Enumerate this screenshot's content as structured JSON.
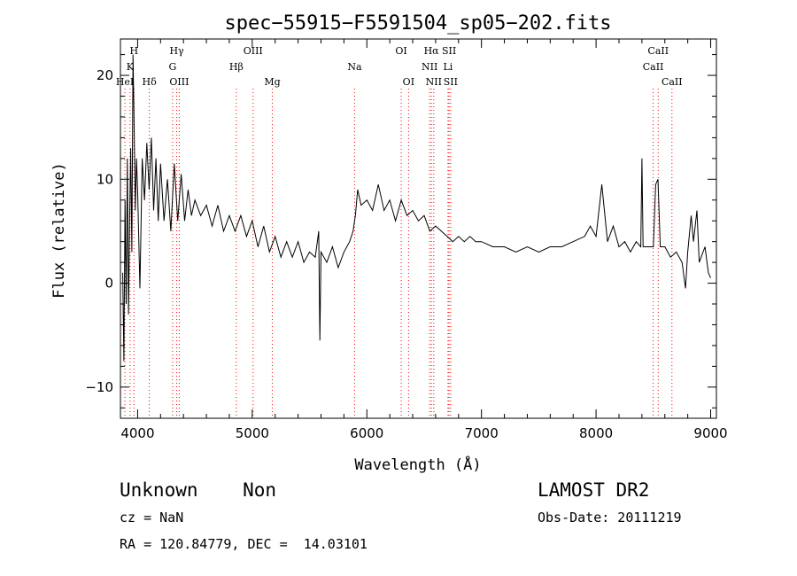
{
  "chart_data": {
    "type": "line",
    "title": "spec−55915−F5591504_sp05−202.fits",
    "xlabel": "Wavelength (Å)",
    "ylabel": "Flux (relative)",
    "xlim": [
      3850,
      9050
    ],
    "ylim": [
      -13,
      23.5
    ],
    "x_ticks": [
      4000,
      5000,
      6000,
      7000,
      8000,
      9000
    ],
    "y_ticks": [
      -10,
      0,
      10,
      20
    ],
    "grid": false,
    "line_color": "#000000",
    "marker_color": "#ff0000",
    "lines": [
      {
        "label": "H",
        "x": 3968,
        "row": 0
      },
      {
        "label": "K",
        "x": 3934,
        "row": 1
      },
      {
        "label": "HeI",
        "x": 3889,
        "row": 2
      },
      {
        "label": "Hδ",
        "x": 4102,
        "row": 2
      },
      {
        "label": "Hγ",
        "x": 4341,
        "row": 0
      },
      {
        "label": "G",
        "x": 4305,
        "row": 1
      },
      {
        "label": "OIII",
        "x": 4363,
        "row": 2
      },
      {
        "label": "OIII",
        "x": 5007,
        "row": 0
      },
      {
        "label": "Hβ",
        "x": 4861,
        "row": 1
      },
      {
        "label": "Mg",
        "x": 5175,
        "row": 2
      },
      {
        "label": "Na",
        "x": 5893,
        "row": 1
      },
      {
        "label": "OI",
        "x": 6300,
        "row": 0
      },
      {
        "label": "OI",
        "x": 6364,
        "row": 2
      },
      {
        "label": "Hα",
        "x": 6563,
        "row": 0
      },
      {
        "label": "SII",
        "x": 6717,
        "row": 0
      },
      {
        "label": "NII",
        "x": 6548,
        "row": 1
      },
      {
        "label": "Li",
        "x": 6708,
        "row": 1
      },
      {
        "label": "NII",
        "x": 6584,
        "row": 2
      },
      {
        "label": "SII",
        "x": 6731,
        "row": 2
      },
      {
        "label": "CaII",
        "x": 8542,
        "row": 0
      },
      {
        "label": "CaII",
        "x": 8498,
        "row": 1
      },
      {
        "label": "CaII",
        "x": 8662,
        "row": 2
      }
    ],
    "series": [
      {
        "x": [
          3870,
          3880,
          3890,
          3900,
          3910,
          3920,
          3930,
          3940,
          3950,
          3960,
          3970,
          3980,
          3990,
          4000,
          4020,
          4040,
          4060,
          4080,
          4100,
          4120,
          4140,
          4160,
          4180,
          4200,
          4230,
          4260,
          4290,
          4320,
          4350,
          4380,
          4410,
          4440,
          4470,
          4500,
          4550,
          4600,
          4650,
          4700,
          4750,
          4800,
          4850,
          4900,
          4950,
          5000,
          5050,
          5100,
          5150,
          5200,
          5250,
          5300,
          5350,
          5400,
          5450,
          5500,
          5550,
          5580,
          5590,
          5600,
          5650,
          5700,
          5750,
          5800,
          5850,
          5880,
          5900,
          5920,
          5950,
          6000,
          6050,
          6100,
          6150,
          6200,
          6250,
          6300,
          6350,
          6400,
          6450,
          6500,
          6550,
          6600,
          6650,
          6700,
          6750,
          6800,
          6850,
          6900,
          6950,
          7000,
          7100,
          7200,
          7300,
          7400,
          7500,
          7600,
          7700,
          7800,
          7900,
          7950,
          8000,
          8050,
          8100,
          8150,
          8200,
          8250,
          8300,
          8350,
          8390,
          8400,
          8410,
          8450,
          8500,
          8520,
          8540,
          8560,
          8600,
          8650,
          8700,
          8750,
          8780,
          8800,
          8830,
          8850,
          8880,
          8900,
          8950,
          8980,
          9000
        ],
        "y": [
          1.0,
          -7.5,
          8.0,
          -2.0,
          12.0,
          -3.0,
          6.0,
          13.0,
          3.0,
          22.0,
          15.0,
          7.0,
          12.0,
          9.0,
          -0.5,
          12.0,
          8.0,
          13.5,
          9.0,
          14.0,
          7.0,
          12.0,
          6.0,
          11.5,
          6.0,
          10.0,
          5.0,
          11.5,
          6.0,
          10.5,
          6.0,
          9.0,
          6.5,
          8.0,
          6.5,
          7.5,
          5.5,
          7.5,
          5.0,
          6.5,
          5.0,
          6.5,
          4.5,
          6.0,
          3.5,
          5.5,
          3.0,
          4.5,
          2.5,
          4.0,
          2.5,
          4.0,
          2.0,
          3.0,
          2.5,
          5.0,
          -5.5,
          3.0,
          2.0,
          3.5,
          1.5,
          3.0,
          4.0,
          5.0,
          6.5,
          9.0,
          7.5,
          8.0,
          7.0,
          9.5,
          7.0,
          8.0,
          6.0,
          8.0,
          6.5,
          7.0,
          6.0,
          6.5,
          5.0,
          5.5,
          5.0,
          4.5,
          4.0,
          4.5,
          4.0,
          4.5,
          4.0,
          4.0,
          3.5,
          3.5,
          3.0,
          3.5,
          3.0,
          3.5,
          3.5,
          4.0,
          4.5,
          5.5,
          4.5,
          9.5,
          4.0,
          5.5,
          3.5,
          4.0,
          3.0,
          4.0,
          3.5,
          12.0,
          3.5,
          3.5,
          3.5,
          9.5,
          10.0,
          3.5,
          3.5,
          2.5,
          3.0,
          2.0,
          -0.5,
          3.0,
          6.5,
          4.0,
          7.0,
          2.0,
          3.5,
          1.0,
          0.5
        ]
      }
    ]
  },
  "info": {
    "class_label": "Unknown    Non",
    "cz_label": "cz = NaN",
    "coords_label": "RA = 120.84779, DEC =  14.03101",
    "survey_label": "LAMOST DR2",
    "obs_label": "Obs-Date: 20111219"
  }
}
